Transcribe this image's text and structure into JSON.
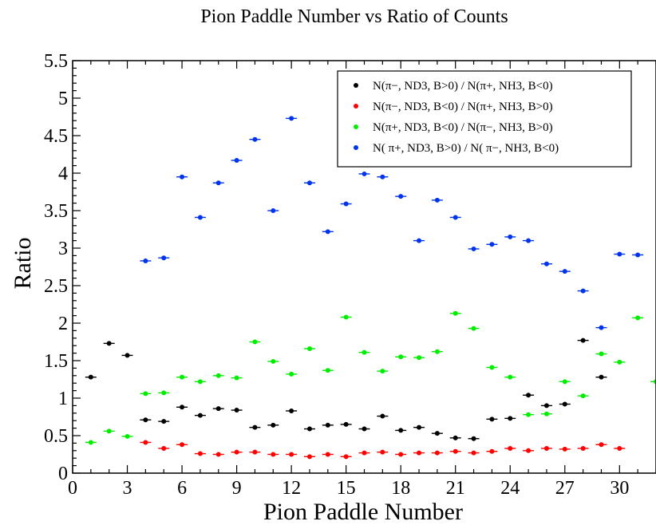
{
  "chart_data": {
    "type": "scatter",
    "title": "Pion Paddle Number vs Ratio of Counts",
    "xlabel": "Pion Paddle Number",
    "ylabel": "Ratio",
    "xlim": [
      0,
      32
    ],
    "ylim": [
      0,
      5.5
    ],
    "x_ticks": [
      "0",
      "3",
      "6",
      "9",
      "12",
      "15",
      "18",
      "21",
      "24",
      "27",
      "30"
    ],
    "y_ticks": [
      "0",
      "0.5",
      "1",
      "1.5",
      "2",
      "2.5",
      "3",
      "3.5",
      "4",
      "4.5",
      "5",
      "5.5"
    ],
    "legend_position": "top-right",
    "series": [
      {
        "name": "N(π−, ND3, B>0) / N(π+, NH3, B<0)",
        "color": "#000000",
        "points": [
          [
            1,
            1.28
          ],
          [
            2,
            1.73
          ],
          [
            3,
            1.57
          ],
          [
            4,
            0.71
          ],
          [
            5,
            0.69
          ],
          [
            6,
            0.88
          ],
          [
            7,
            0.77
          ],
          [
            8,
            0.86
          ],
          [
            9,
            0.84
          ],
          [
            10,
            0.61
          ],
          [
            11,
            0.64
          ],
          [
            12,
            0.83
          ],
          [
            13,
            0.59
          ],
          [
            14,
            0.64
          ],
          [
            15,
            0.65
          ],
          [
            16,
            0.59
          ],
          [
            17,
            0.76
          ],
          [
            18,
            0.57
          ],
          [
            19,
            0.61
          ],
          [
            20,
            0.53
          ],
          [
            21,
            0.47
          ],
          [
            22,
            0.46
          ],
          [
            23,
            0.72
          ],
          [
            24,
            0.73
          ],
          [
            25,
            1.04
          ],
          [
            26,
            0.9
          ],
          [
            27,
            0.92
          ],
          [
            28,
            1.77
          ],
          [
            29,
            1.28
          ]
        ]
      },
      {
        "name": "N(π−, ND3, B<0) / N(π+, NH3, B>0)",
        "color": "#ff0000",
        "points": [
          [
            4,
            0.41
          ],
          [
            5,
            0.33
          ],
          [
            6,
            0.38
          ],
          [
            7,
            0.26
          ],
          [
            8,
            0.25
          ],
          [
            9,
            0.28
          ],
          [
            10,
            0.28
          ],
          [
            11,
            0.25
          ],
          [
            12,
            0.25
          ],
          [
            13,
            0.22
          ],
          [
            14,
            0.25
          ],
          [
            15,
            0.22
          ],
          [
            16,
            0.27
          ],
          [
            17,
            0.28
          ],
          [
            18,
            0.25
          ],
          [
            19,
            0.27
          ],
          [
            20,
            0.27
          ],
          [
            21,
            0.29
          ],
          [
            22,
            0.27
          ],
          [
            23,
            0.29
          ],
          [
            24,
            0.33
          ],
          [
            25,
            0.3
          ],
          [
            26,
            0.33
          ],
          [
            27,
            0.32
          ],
          [
            28,
            0.33
          ],
          [
            29,
            0.38
          ],
          [
            30,
            0.33
          ]
        ]
      },
      {
        "name": "N(π+, ND3, B<0) / N(π−, NH3, B>0)",
        "color": "#00ee00",
        "points": [
          [
            1,
            0.41
          ],
          [
            2,
            0.56
          ],
          [
            3,
            0.49
          ],
          [
            4,
            1.06
          ],
          [
            5,
            1.07
          ],
          [
            6,
            1.28
          ],
          [
            7,
            1.22
          ],
          [
            8,
            1.3
          ],
          [
            9,
            1.27
          ],
          [
            10,
            1.75
          ],
          [
            11,
            1.49
          ],
          [
            12,
            1.32
          ],
          [
            13,
            1.66
          ],
          [
            14,
            1.37
          ],
          [
            15,
            2.08
          ],
          [
            16,
            1.61
          ],
          [
            17,
            1.36
          ],
          [
            18,
            1.55
          ],
          [
            19,
            1.54
          ],
          [
            20,
            1.62
          ],
          [
            21,
            2.13
          ],
          [
            22,
            1.93
          ],
          [
            23,
            1.41
          ],
          [
            24,
            1.28
          ],
          [
            25,
            0.78
          ],
          [
            26,
            0.79
          ],
          [
            27,
            1.22
          ],
          [
            28,
            1.03
          ],
          [
            29,
            1.59
          ],
          [
            30,
            1.48
          ],
          [
            31,
            2.07
          ],
          [
            32,
            1.22
          ]
        ]
      },
      {
        "name": "N( π+, ND3, B>0) / N( π−, NH3, B<0)",
        "color": "#0033ee",
        "points": [
          [
            4,
            2.83
          ],
          [
            5,
            2.87
          ],
          [
            6,
            3.95
          ],
          [
            7,
            3.41
          ],
          [
            8,
            3.87
          ],
          [
            9,
            4.17
          ],
          [
            10,
            4.45
          ],
          [
            11,
            3.5
          ],
          [
            12,
            4.73
          ],
          [
            13,
            3.87
          ],
          [
            14,
            3.22
          ],
          [
            15,
            3.59
          ],
          [
            16,
            3.99
          ],
          [
            17,
            3.95
          ],
          [
            18,
            3.69
          ],
          [
            19,
            3.1
          ],
          [
            20,
            3.64
          ],
          [
            21,
            3.41
          ],
          [
            22,
            2.99
          ],
          [
            23,
            3.05
          ],
          [
            24,
            3.15
          ],
          [
            25,
            3.1
          ],
          [
            26,
            2.79
          ],
          [
            27,
            2.69
          ],
          [
            28,
            2.43
          ],
          [
            29,
            1.94
          ],
          [
            30,
            2.92
          ],
          [
            31,
            2.91
          ]
        ]
      }
    ]
  }
}
